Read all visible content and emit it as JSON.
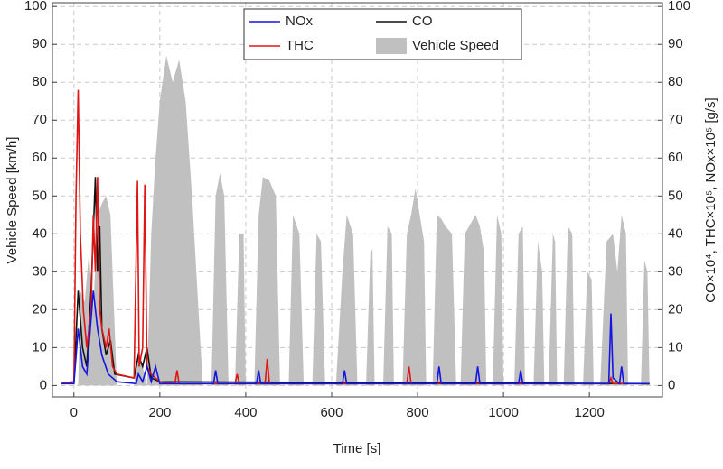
{
  "chart_data": {
    "type": "line",
    "xlabel": "Time [s]",
    "ylabel": "Vehicle Speed [km/h]",
    "y2label": "CO×10⁴, THC×10⁵, NOx×10⁵ [g/s]",
    "xlim": [
      -50,
      1370
    ],
    "xticks": [
      0,
      200,
      400,
      600,
      800,
      1000,
      1200
    ],
    "ylim": [
      -3,
      101
    ],
    "yticks": [
      0,
      10,
      20,
      30,
      40,
      50,
      60,
      70,
      80,
      90,
      100
    ],
    "y2lim": [
      -3,
      101
    ],
    "y2ticks": [
      0,
      10,
      20,
      30,
      40,
      50,
      60,
      70,
      80,
      90,
      100
    ],
    "grid": true,
    "legend": "top",
    "series": [
      {
        "name": "NOx",
        "color": "#1515e0",
        "axis": "y2",
        "x": [
          -30,
          0,
          10,
          20,
          30,
          45,
          55,
          65,
          80,
          100,
          145,
          150,
          160,
          170,
          180,
          190,
          200,
          325,
          330,
          335,
          425,
          430,
          435,
          625,
          630,
          635,
          845,
          850,
          855,
          935,
          940,
          945,
          1035,
          1040,
          1045,
          1245,
          1250,
          1255,
          1270,
          1275,
          1280,
          1340
        ],
        "values": [
          0.5,
          0.5,
          15,
          5,
          3,
          25,
          15,
          8,
          3,
          1,
          0.5,
          3,
          1,
          5,
          1,
          5,
          0.5,
          0.5,
          4,
          0.5,
          0.5,
          4,
          0.5,
          0.5,
          4,
          0.5,
          0.5,
          5,
          0.5,
          0.5,
          5,
          0.5,
          0.5,
          4,
          0.5,
          0.5,
          19,
          2,
          0.5,
          5,
          0.5,
          0.5
        ]
      },
      {
        "name": "THC",
        "color": "#e01515",
        "axis": "y2",
        "x": [
          -30,
          0,
          5,
          10,
          15,
          22,
          30,
          40,
          45,
          50,
          55,
          60,
          65,
          75,
          82,
          90,
          100,
          140,
          148,
          152,
          160,
          165,
          170,
          180,
          200,
          235,
          240,
          245,
          375,
          380,
          385,
          445,
          450,
          455,
          775,
          780,
          785,
          1245,
          1250,
          1255,
          1340
        ],
        "values": [
          0.5,
          1,
          50,
          78,
          40,
          20,
          10,
          20,
          45,
          30,
          55,
          20,
          15,
          10,
          15,
          5,
          3,
          2,
          54,
          5,
          10,
          53,
          5,
          3,
          1,
          0.5,
          4,
          0.5,
          0.5,
          3,
          0.5,
          0.5,
          7,
          0.5,
          0.5,
          5,
          0.5,
          0.5,
          2,
          0.5,
          0.5
        ]
      },
      {
        "name": "CO",
        "color": "#111111",
        "axis": "y2",
        "x": [
          -30,
          0,
          10,
          20,
          30,
          40,
          50,
          55,
          60,
          65,
          75,
          85,
          95,
          140,
          150,
          160,
          170,
          180,
          200,
          1340
        ],
        "values": [
          0.5,
          1,
          25,
          10,
          5,
          25,
          55,
          30,
          42,
          15,
          8,
          12,
          3,
          2,
          8,
          5,
          10,
          2,
          1,
          0.5
        ]
      },
      {
        "name": "Vehicle Speed",
        "color": "#c0c0c0",
        "x": [
          0,
          10,
          15,
          25,
          35,
          45,
          55,
          65,
          75,
          85,
          95,
          100,
          140,
          150,
          160,
          170,
          180,
          190,
          200,
          215,
          230,
          245,
          260,
          275,
          290,
          300,
          320,
          330,
          340,
          350,
          360,
          375,
          385,
          395,
          400,
          420,
          430,
          440,
          455,
          470,
          480,
          500,
          510,
          525,
          535,
          555,
          565,
          575,
          585,
          610,
          625,
          635,
          650,
          660,
          680,
          690,
          695,
          700,
          720,
          730,
          740,
          745,
          765,
          775,
          785,
          795,
          805,
          815,
          820,
          835,
          845,
          855,
          865,
          880,
          890,
          900,
          910,
          920,
          935,
          945,
          955,
          960,
          975,
          985,
          995,
          1000,
          1025,
          1035,
          1045,
          1050,
          1070,
          1080,
          1090,
          1095,
          1105,
          1115,
          1120,
          1125,
          1140,
          1150,
          1160,
          1165,
          1185,
          1195,
          1205,
          1210,
          1225,
          1240,
          1255,
          1265,
          1275,
          1285,
          1290,
          1320,
          1328,
          1335,
          1340
        ],
        "values": [
          0,
          0,
          25,
          22,
          35,
          20,
          45,
          48,
          50,
          45,
          15,
          0,
          0,
          10,
          5,
          0,
          40,
          60,
          75,
          87,
          80,
          86,
          75,
          50,
          20,
          0,
          0,
          50,
          56,
          50,
          0,
          0,
          40,
          40,
          0,
          0,
          45,
          55,
          54,
          50,
          0,
          0,
          45,
          40,
          0,
          0,
          40,
          38,
          0,
          0,
          30,
          45,
          40,
          0,
          0,
          35,
          36,
          0,
          0,
          42,
          40,
          0,
          0,
          40,
          45,
          52,
          45,
          38,
          0,
          0,
          45,
          44,
          42,
          40,
          0,
          0,
          40,
          42,
          45,
          42,
          35,
          0,
          0,
          45,
          40,
          0,
          0,
          40,
          42,
          0,
          0,
          38,
          30,
          0,
          0,
          40,
          38,
          0,
          0,
          42,
          40,
          0,
          0,
          30,
          28,
          0,
          0,
          38,
          40,
          30,
          45,
          40,
          0,
          0,
          33,
          30,
          0
        ]
      }
    ]
  }
}
